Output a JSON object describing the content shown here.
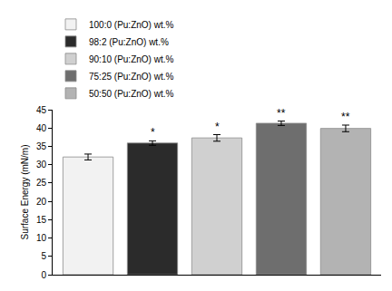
{
  "chart_data": {
    "type": "bar",
    "y_label": "Surface Energy (mN/m)",
    "series": [
      {
        "name": "100:0 (Pu:ZnO) wt.%",
        "color": "#f2f2f2",
        "values": [
          32.1
        ],
        "error": [
          0.8
        ]
      },
      {
        "name": "98:2 (Pu:ZnO) wt.%",
        "color": "#2b2b2b",
        "values": [
          35.9
        ],
        "error": [
          0.6
        ],
        "annotation": "*"
      },
      {
        "name": "90:10 (Pu:ZnO) wt.%",
        "color": "#d0d0d0",
        "values": [
          37.3
        ],
        "error": [
          0.9
        ],
        "annotation": "*"
      },
      {
        "name": "75:25 (Pu:ZnO) wt.%",
        "color": "#6e6e6e",
        "values": [
          41.3
        ],
        "error": [
          0.6
        ],
        "annotation": "**"
      },
      {
        "name": "50:50 (Pu:ZnO) wt.%",
        "color": "#b3b3b3",
        "values": [
          39.9
        ],
        "error": [
          0.9
        ],
        "annotation": "**"
      }
    ],
    "ylim": [
      0,
      45
    ],
    "yticks": [
      0,
      5,
      10,
      15,
      20,
      25,
      30,
      35,
      40,
      45
    ],
    "grid": false,
    "legend": "top left",
    "tick_labels": "y"
  }
}
